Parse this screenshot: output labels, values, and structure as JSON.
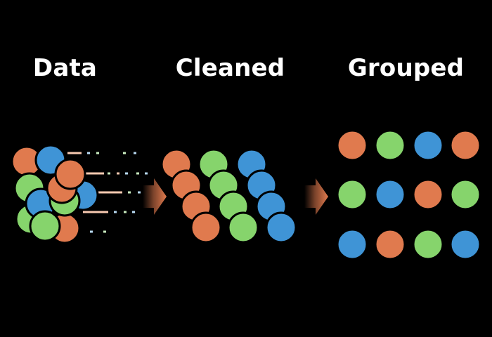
{
  "stages": [
    {
      "title": "Data"
    },
    {
      "title": "Cleaned"
    },
    {
      "title": "Grouped"
    }
  ],
  "colors": {
    "background": "#000000",
    "orange": "#e07a4e",
    "green": "#86d46c",
    "blue": "#3f94d6",
    "outline": "#000000",
    "dash_orange": "#f7c9b0",
    "dash_green": "#c9ecbf",
    "dash_blue": "#b7d9f2",
    "arrow": "#e07a4e"
  },
  "icons": [
    "arrow-right-icon"
  ],
  "raw_circles": [
    "orange",
    "blue",
    "green",
    "green",
    "orange",
    "blue",
    "blue",
    "green",
    "orange",
    "green",
    "orange"
  ],
  "cleaned_columns": [
    [
      "orange",
      "orange",
      "orange",
      "orange"
    ],
    [
      "green",
      "green",
      "green",
      "green"
    ],
    [
      "blue",
      "blue",
      "blue",
      "blue"
    ]
  ],
  "grouped_grid": [
    [
      "orange",
      "green",
      "blue",
      "orange"
    ],
    [
      "green",
      "blue",
      "orange",
      "green"
    ],
    [
      "blue",
      "orange",
      "green",
      "blue"
    ]
  ]
}
